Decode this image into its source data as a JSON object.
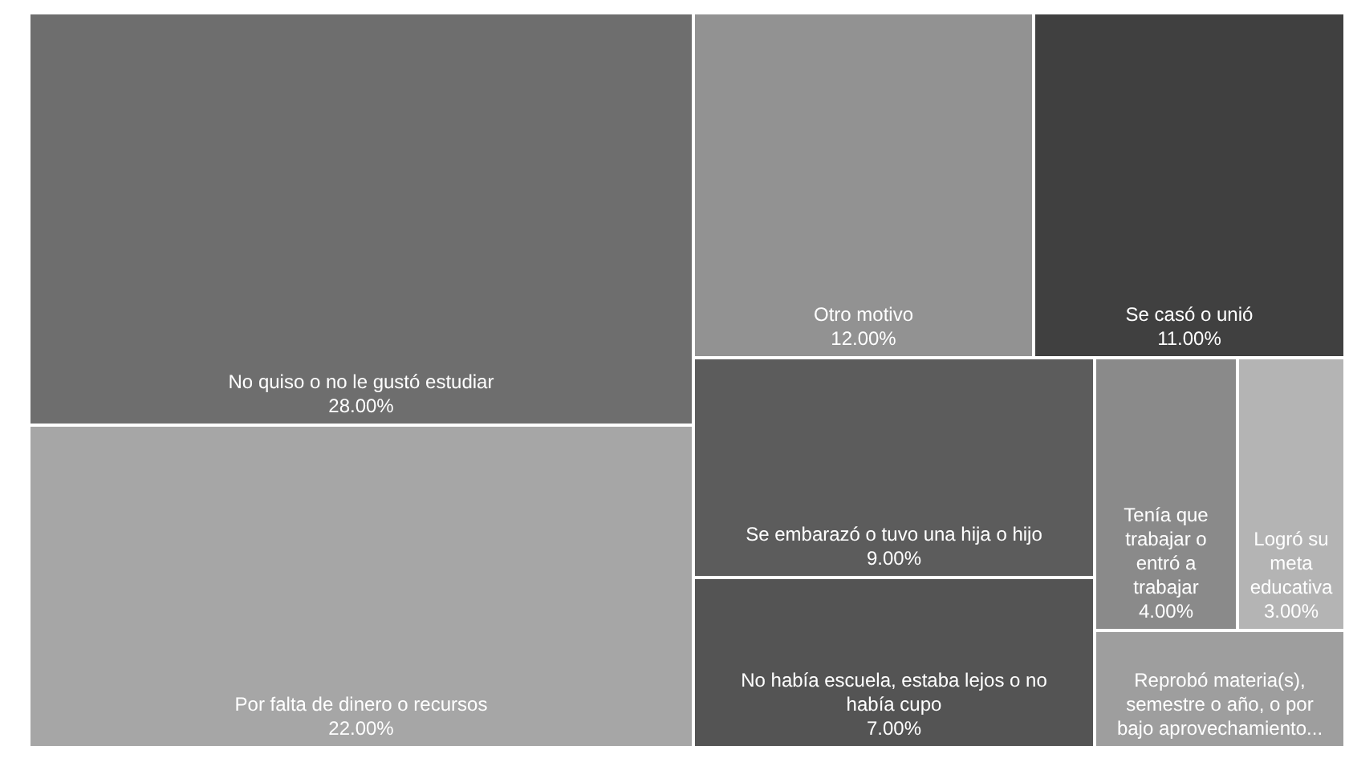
{
  "chart_data": {
    "type": "other",
    "categories": [
      "No quiso o no le gustó estudiar",
      "Por falta de dinero o recursos",
      "Otro motivo",
      "Se casó o unió",
      "Se embarazó o tuvo una hija o hijo",
      "No había escuela, estaba lejos o no había cupo",
      "Tenía que trabajar o entró a trabajar",
      "Logró su meta educativa",
      "Reprobó materia(s), semestre o año, o por bajo aprovechamiento..."
    ],
    "values": [
      28,
      22,
      12,
      11,
      9,
      7,
      4,
      3,
      null
    ],
    "value_labels": [
      "28.00%",
      "22.00%",
      "12.00%",
      "11.00%",
      "9.00%",
      "7.00%",
      "4.00%",
      "3.00%",
      null
    ],
    "colors": [
      "#6e6e6e",
      "#a6a6a6",
      "#929292",
      "#404040",
      "#5c5c5c",
      "#545454",
      "#8a8a8a",
      "#b4b4b4",
      "#9e9e9e"
    ]
  }
}
